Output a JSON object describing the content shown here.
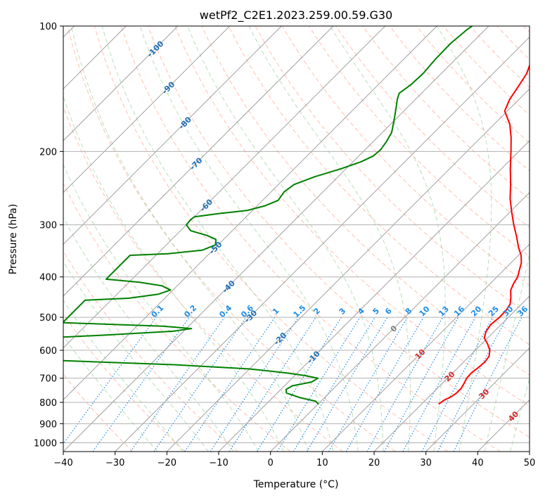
{
  "chart_data": {
    "type": "line",
    "title": "wetPf2_C2E1.2023.259.00.59.G30",
    "xlabel": "Temperature (°C)",
    "ylabel": "Pressure (hPa)",
    "xlim": [
      -40,
      50
    ],
    "ylim": [
      1050,
      100
    ],
    "y_scale": "log",
    "skew": true,
    "x_ticks": [
      "−40",
      "−30",
      "−20",
      "−10",
      "0",
      "10",
      "20",
      "30",
      "40",
      "50"
    ],
    "y_ticks": [
      "100",
      "200",
      "300",
      "400",
      "500",
      "600",
      "700",
      "800",
      "900",
      "1000"
    ],
    "grid": true,
    "colors": {
      "temperature": "#ff0000",
      "dewpoint": "#008000",
      "isotherm": "#a0a0a0",
      "dry_adiabat": "#ff8c6b",
      "moist_adiabat": "#7dc47d",
      "mixing_ratio": "#1e8ce6",
      "isotherm_label": "#1f6eb4",
      "temp_label": "#d62728",
      "zero_label": "#7f7f7f"
    },
    "series": [
      {
        "key": "temperature",
        "points": [
          [
            808,
            23.3
          ],
          [
            790,
            23.6
          ],
          [
            775,
            24.3
          ],
          [
            760,
            24.6
          ],
          [
            740,
            24.6
          ],
          [
            720,
            24.2
          ],
          [
            700,
            23.7
          ],
          [
            680,
            23.6
          ],
          [
            660,
            23.9
          ],
          [
            640,
            24.1
          ],
          [
            620,
            23.8
          ],
          [
            600,
            22.8
          ],
          [
            580,
            21.2
          ],
          [
            560,
            19.3
          ],
          [
            540,
            18.4
          ],
          [
            520,
            18.0
          ],
          [
            500,
            18.3
          ],
          [
            480,
            18.2
          ],
          [
            465,
            17.8
          ],
          [
            450,
            16.8
          ],
          [
            430,
            15.2
          ],
          [
            415,
            14.5
          ],
          [
            400,
            14.0
          ],
          [
            385,
            13.0
          ],
          [
            370,
            12.0
          ],
          [
            355,
            10.5
          ],
          [
            340,
            8.5
          ],
          [
            320,
            6.0
          ],
          [
            300,
            3.2
          ],
          [
            280,
            0.4
          ],
          [
            260,
            -2.5
          ],
          [
            240,
            -5.2
          ],
          [
            220,
            -8.3
          ],
          [
            200,
            -11.5
          ],
          [
            185,
            -14.2
          ],
          [
            172,
            -17.0
          ],
          [
            160,
            -20.5
          ],
          [
            150,
            -21.8
          ],
          [
            140,
            -22.6
          ],
          [
            130,
            -23.5
          ],
          [
            120,
            -25.3
          ],
          [
            110,
            -27.0
          ],
          [
            100,
            -28.7
          ]
        ]
      },
      {
        "key": "dewpoint",
        "points": [
          [
            808,
            0.1
          ],
          [
            795,
            -1.0
          ],
          [
            780,
            -4.6
          ],
          [
            760,
            -8.2
          ],
          [
            745,
            -9.0
          ],
          [
            730,
            -8.5
          ],
          [
            715,
            -5.5
          ],
          [
            700,
            -5.0
          ],
          [
            690,
            -8.0
          ],
          [
            680,
            -12.0
          ],
          [
            665,
            -20.0
          ],
          [
            650,
            -35.0
          ],
          [
            635,
            -58.0
          ],
          [
            630,
            -65.0
          ],
          [
            560,
            -65.0
          ],
          [
            552,
            -55.0
          ],
          [
            540,
            -42.0
          ],
          [
            532,
            -39.0
          ],
          [
            525,
            -45.0
          ],
          [
            520,
            -55.0
          ],
          [
            515,
            -65.0
          ],
          [
            455,
            -65.0
          ],
          [
            450,
            -57.0
          ],
          [
            440,
            -52.0
          ],
          [
            430,
            -50.5
          ],
          [
            420,
            -53.0
          ],
          [
            412,
            -58.0
          ],
          [
            405,
            -65.0
          ],
          [
            355,
            -65.0
          ],
          [
            352,
            -58.0
          ],
          [
            345,
            -52.0
          ],
          [
            335,
            -50.5
          ],
          [
            325,
            -51.5
          ],
          [
            318,
            -54.0
          ],
          [
            310,
            -58.0
          ],
          [
            300,
            -60.0
          ],
          [
            292,
            -60.2
          ],
          [
            287,
            -60.0
          ],
          [
            282,
            -56.0
          ],
          [
            277,
            -51.0
          ],
          [
            270,
            -48.5
          ],
          [
            262,
            -47.0
          ],
          [
            250,
            -47.5
          ],
          [
            240,
            -47.0
          ],
          [
            230,
            -44.5
          ],
          [
            220,
            -41.0
          ],
          [
            212,
            -38.5
          ],
          [
            205,
            -37.2
          ],
          [
            198,
            -37.0
          ],
          [
            190,
            -37.4
          ],
          [
            180,
            -38.2
          ],
          [
            170,
            -39.8
          ],
          [
            162,
            -41.2
          ],
          [
            155,
            -42.5
          ],
          [
            150,
            -43.5
          ],
          [
            145,
            -44.3
          ],
          [
            138,
            -43.7
          ],
          [
            130,
            -43.5
          ],
          [
            120,
            -43.9
          ],
          [
            110,
            -44.0
          ],
          [
            102,
            -43.5
          ],
          [
            100,
            -43.2
          ]
        ]
      }
    ],
    "isotherm_labels": [
      "-100",
      "-90",
      "-80",
      "-70",
      "-60",
      "-50",
      "-40",
      "-30",
      "-20",
      "-10"
    ],
    "temp_labels": [
      "0",
      "10",
      "20",
      "30",
      "40"
    ],
    "mixing_ratio_labels": [
      "0.1",
      "0.2",
      "0.4",
      "0.6",
      "1",
      "1.5",
      "2",
      "3",
      "4",
      "5",
      "6",
      "8",
      "10",
      "13",
      "16",
      "20",
      "25",
      "30",
      "36"
    ]
  }
}
